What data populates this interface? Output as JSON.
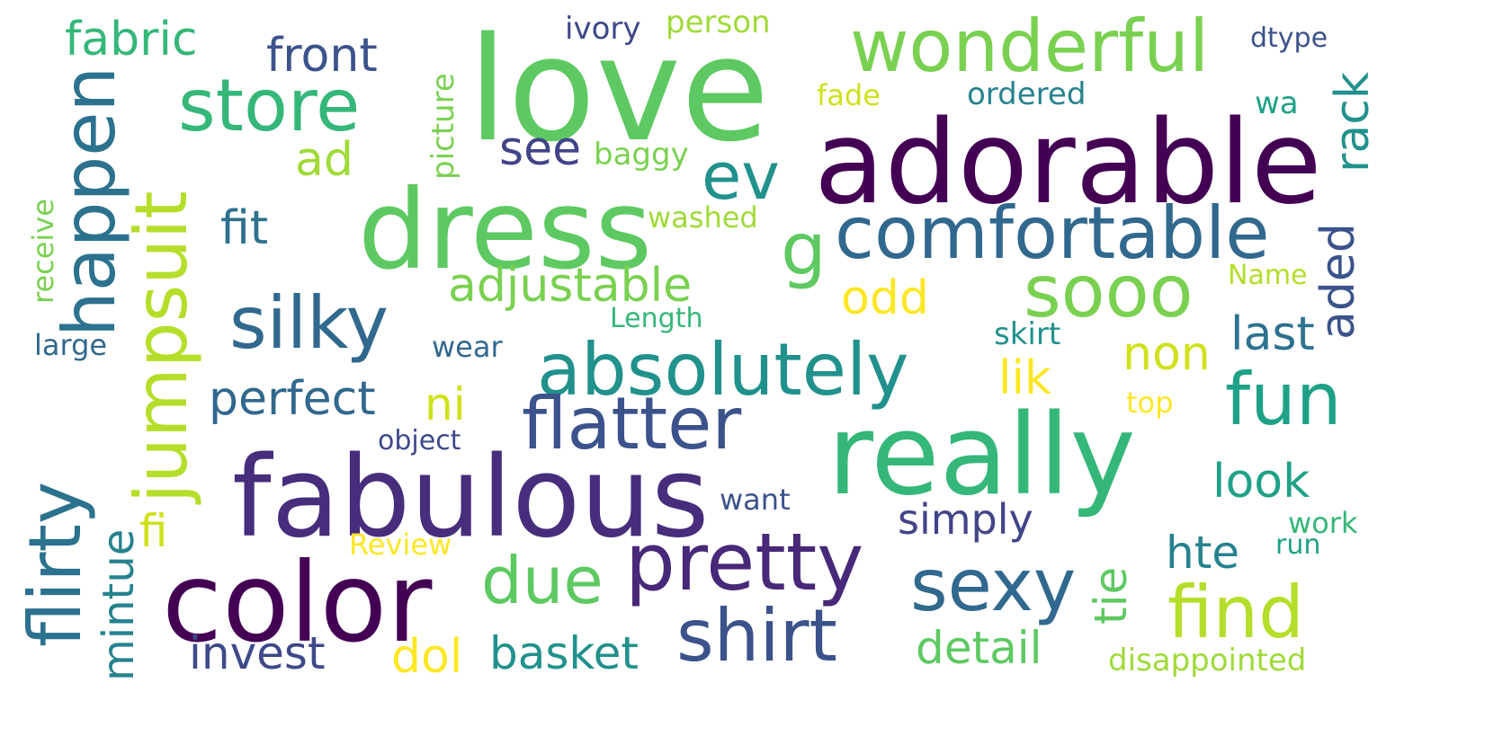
{
  "words": [
    {
      "text": "love",
      "color": "#5ec962"
    },
    {
      "text": "adorable",
      "color": "#440154"
    },
    {
      "text": "dress",
      "color": "#5ec962"
    },
    {
      "text": "really",
      "color": "#35b779"
    },
    {
      "text": "fabulous",
      "color": "#472d7b"
    },
    {
      "text": "color",
      "color": "#440154"
    },
    {
      "text": "wonderful",
      "color": "#7ad151"
    },
    {
      "text": "comfortable",
      "color": "#31688e"
    },
    {
      "text": "absolutely",
      "color": "#21918c"
    },
    {
      "text": "flatter",
      "color": "#3b528b"
    },
    {
      "text": "pretty",
      "color": "#482878"
    },
    {
      "text": "silky",
      "color": "#31688e"
    },
    {
      "text": "store",
      "color": "#35b779"
    },
    {
      "text": "happen",
      "color": "#2c728e"
    },
    {
      "text": "jumpsuit",
      "color": "#b5de2b"
    },
    {
      "text": "flirty",
      "color": "#2c728e"
    },
    {
      "text": "shirt",
      "color": "#3b528b"
    },
    {
      "text": "sexy",
      "color": "#31688e"
    },
    {
      "text": "find",
      "color": "#b5de2b"
    },
    {
      "text": "fun",
      "color": "#1fa187"
    },
    {
      "text": "sooo",
      "color": "#7ad151"
    },
    {
      "text": "due",
      "color": "#5ec962"
    },
    {
      "text": "ev",
      "color": "#21918c"
    },
    {
      "text": "g",
      "color": "#5ec962"
    },
    {
      "text": "fabric",
      "color": "#35b779"
    },
    {
      "text": "front",
      "color": "#3b528b"
    },
    {
      "text": "adjustable",
      "color": "#7ad151"
    },
    {
      "text": "perfect",
      "color": "#31688e"
    },
    {
      "text": "invest",
      "color": "#3e4989"
    },
    {
      "text": "basket",
      "color": "#21918c"
    },
    {
      "text": "detail",
      "color": "#5ec962"
    },
    {
      "text": "simply",
      "color": "#414487"
    },
    {
      "text": "look",
      "color": "#1fa187"
    },
    {
      "text": "last",
      "color": "#2c728e"
    },
    {
      "text": "rack",
      "color": "#21918c"
    },
    {
      "text": "aded",
      "color": "#3b528b"
    },
    {
      "text": "hte",
      "color": "#26828e"
    },
    {
      "text": "tie",
      "color": "#5ec962"
    },
    {
      "text": "mintue",
      "color": "#26828e"
    },
    {
      "text": "fit",
      "color": "#2c728e"
    },
    {
      "text": "see",
      "color": "#414487"
    },
    {
      "text": "ad",
      "color": "#a0da39"
    },
    {
      "text": "odd",
      "color": "#fde725"
    },
    {
      "text": "non",
      "color": "#d0e11c"
    },
    {
      "text": "lik",
      "color": "#fde725"
    },
    {
      "text": "ni",
      "color": "#d0e11c"
    },
    {
      "text": "fi",
      "color": "#d0e11c"
    },
    {
      "text": "dol",
      "color": "#fde725"
    },
    {
      "text": "picture",
      "color": "#7ad151"
    },
    {
      "text": "receive",
      "color": "#7ad151"
    },
    {
      "text": "ivory",
      "color": "#3e4989"
    },
    {
      "text": "person",
      "color": "#a0da39"
    },
    {
      "text": "dtype",
      "color": "#3b528b"
    },
    {
      "text": "fade",
      "color": "#d0e11c"
    },
    {
      "text": "ordered",
      "color": "#26828e"
    },
    {
      "text": "wa",
      "color": "#1fa187"
    },
    {
      "text": "baggy",
      "color": "#7ad151"
    },
    {
      "text": "washed",
      "color": "#a0da39"
    },
    {
      "text": "Name",
      "color": "#b5de2b"
    },
    {
      "text": "Length",
      "color": "#35b779"
    },
    {
      "text": "large",
      "color": "#31688e"
    },
    {
      "text": "wear",
      "color": "#31688e"
    },
    {
      "text": "skirt",
      "color": "#21918c"
    },
    {
      "text": "top",
      "color": "#fde725"
    },
    {
      "text": "object",
      "color": "#3e4989"
    },
    {
      "text": "want",
      "color": "#3b528b"
    },
    {
      "text": "work",
      "color": "#35b779"
    },
    {
      "text": "run",
      "color": "#1fa187"
    },
    {
      "text": "Review",
      "color": "#fde725"
    },
    {
      "text": "disappointed",
      "color": "#a0da39"
    }
  ]
}
